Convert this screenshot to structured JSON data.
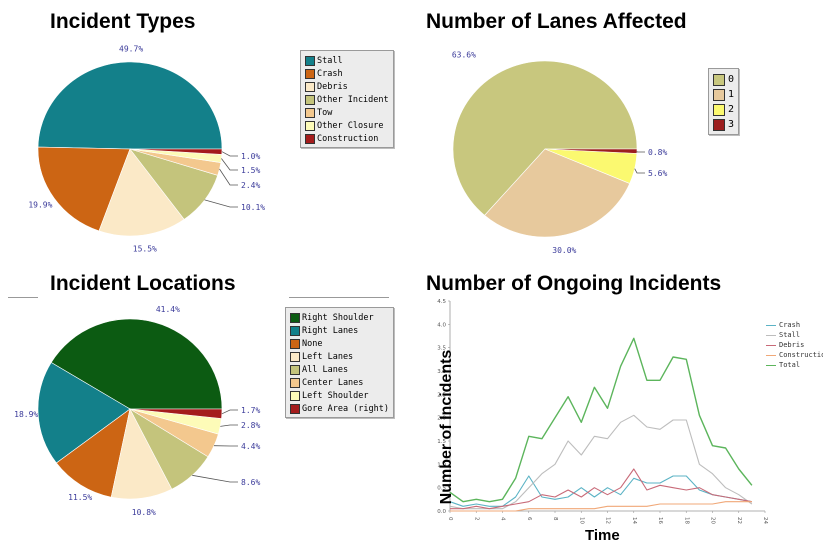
{
  "panels": {
    "types_title": "Incident Types",
    "lanes_title": "Number of Lanes Affected",
    "locations_title": "Incident Locations",
    "ongoing_title": "Number of Ongoing Incidents"
  },
  "chart_data": [
    {
      "type": "pie",
      "title": "Incident Types",
      "categories": [
        "Stall",
        "Crash",
        "Debris",
        "Other Incident",
        "Tow",
        "Other Closure",
        "Construction"
      ],
      "values": [
        49.7,
        19.9,
        15.5,
        10.1,
        2.4,
        1.5,
        1.0
      ],
      "labels": [
        "49.7%",
        "19.9%",
        "15.5%",
        "10.1%",
        "2.4%",
        "1.5%",
        "1.0%"
      ],
      "colors": [
        "#13808a",
        "#cc6514",
        "#fbe9c7",
        "#c4c47c",
        "#f3c88e",
        "#fdfbb8",
        "#a41c1c"
      ],
      "legend_position": "right"
    },
    {
      "type": "pie",
      "title": "Number of Lanes Affected",
      "categories": [
        "0",
        "1",
        "2",
        "3"
      ],
      "values": [
        63.6,
        30.0,
        5.6,
        0.8
      ],
      "labels": [
        "63.6%",
        "30.0%",
        "5.6%",
        "0.8%"
      ],
      "colors": [
        "#c8c77e",
        "#e7c99d",
        "#fbf970",
        "#9c1e1e"
      ],
      "legend_position": "right"
    },
    {
      "type": "pie",
      "title": "Incident Locations",
      "categories": [
        "Right Shoulder",
        "Right Lanes",
        "None",
        "Left Lanes",
        "All Lanes",
        "Center Lanes",
        "Left Shoulder",
        "Gore Area (right)"
      ],
      "values": [
        41.4,
        18.9,
        11.5,
        10.8,
        8.6,
        4.4,
        2.8,
        1.7
      ],
      "labels": [
        "41.4%",
        "18.9%",
        "11.5%",
        "10.8%",
        "8.6%",
        "4.4%",
        "2.8%",
        "1.7%"
      ],
      "colors": [
        "#0c5b12",
        "#13808a",
        "#cc6514",
        "#fbe9c7",
        "#c4c47c",
        "#f3c88e",
        "#fdfbb8",
        "#a41c1c"
      ],
      "legend_position": "right"
    },
    {
      "type": "line",
      "title": "Number of Ongoing Incidents",
      "xlabel": "Time",
      "ylabel": "Number of Incidents",
      "x": [
        0,
        1,
        2,
        3,
        4,
        5,
        6,
        7,
        8,
        9,
        10,
        11,
        12,
        13,
        14,
        15,
        16,
        17,
        18,
        19,
        20,
        21,
        22,
        23
      ],
      "xticks": [
        "0",
        "2",
        "4",
        "6",
        "8",
        "10",
        "12",
        "14",
        "16",
        "18",
        "20",
        "22",
        "24"
      ],
      "yticks": [
        "0.0",
        "0.5",
        "1.0",
        "1.5",
        "2.0",
        "2.5",
        "3.0",
        "3.5",
        "4.0",
        "4.5"
      ],
      "ylim": [
        0,
        4.5
      ],
      "xlim": [
        0,
        24
      ],
      "series": [
        {
          "name": "Crash",
          "color": "#5bb3c5",
          "values": [
            0.2,
            0.1,
            0.15,
            0.1,
            0.1,
            0.3,
            0.75,
            0.3,
            0.25,
            0.3,
            0.5,
            0.3,
            0.5,
            0.35,
            0.7,
            0.6,
            0.6,
            0.75,
            0.75,
            0.45,
            0.35,
            0.3,
            0.25,
            0.2
          ]
        },
        {
          "name": "Stall",
          "color": "#bdbdbd",
          "values": [
            0.1,
            0.05,
            0.05,
            0.05,
            0.05,
            0.2,
            0.5,
            0.8,
            1.0,
            1.5,
            1.2,
            1.6,
            1.55,
            1.9,
            2.05,
            1.8,
            1.75,
            1.95,
            1.95,
            1.0,
            0.8,
            0.5,
            0.35,
            0.15
          ]
        },
        {
          "name": "Debris",
          "color": "#c86a78",
          "values": [
            0.05,
            0.05,
            0.1,
            0.05,
            0.1,
            0.15,
            0.2,
            0.35,
            0.3,
            0.45,
            0.3,
            0.5,
            0.35,
            0.5,
            0.9,
            0.45,
            0.55,
            0.5,
            0.45,
            0.5,
            0.35,
            0.3,
            0.25,
            0.2
          ]
        },
        {
          "name": "Construction",
          "color": "#f0a878",
          "values": [
            0.0,
            0.0,
            0.0,
            0.0,
            0.0,
            0.0,
            0.05,
            0.05,
            0.05,
            0.05,
            0.05,
            0.05,
            0.1,
            0.1,
            0.1,
            0.1,
            0.15,
            0.15,
            0.15,
            0.15,
            0.15,
            0.2,
            0.2,
            0.2
          ]
        },
        {
          "name": "Total",
          "color": "#5cb55c",
          "values": [
            0.4,
            0.2,
            0.25,
            0.2,
            0.25,
            0.7,
            1.6,
            1.55,
            2.0,
            2.45,
            1.9,
            2.65,
            2.2,
            3.1,
            3.7,
            2.8,
            2.8,
            3.3,
            3.25,
            2.05,
            1.4,
            1.35,
            0.9,
            0.55
          ]
        }
      ],
      "legend_position": "right"
    }
  ]
}
